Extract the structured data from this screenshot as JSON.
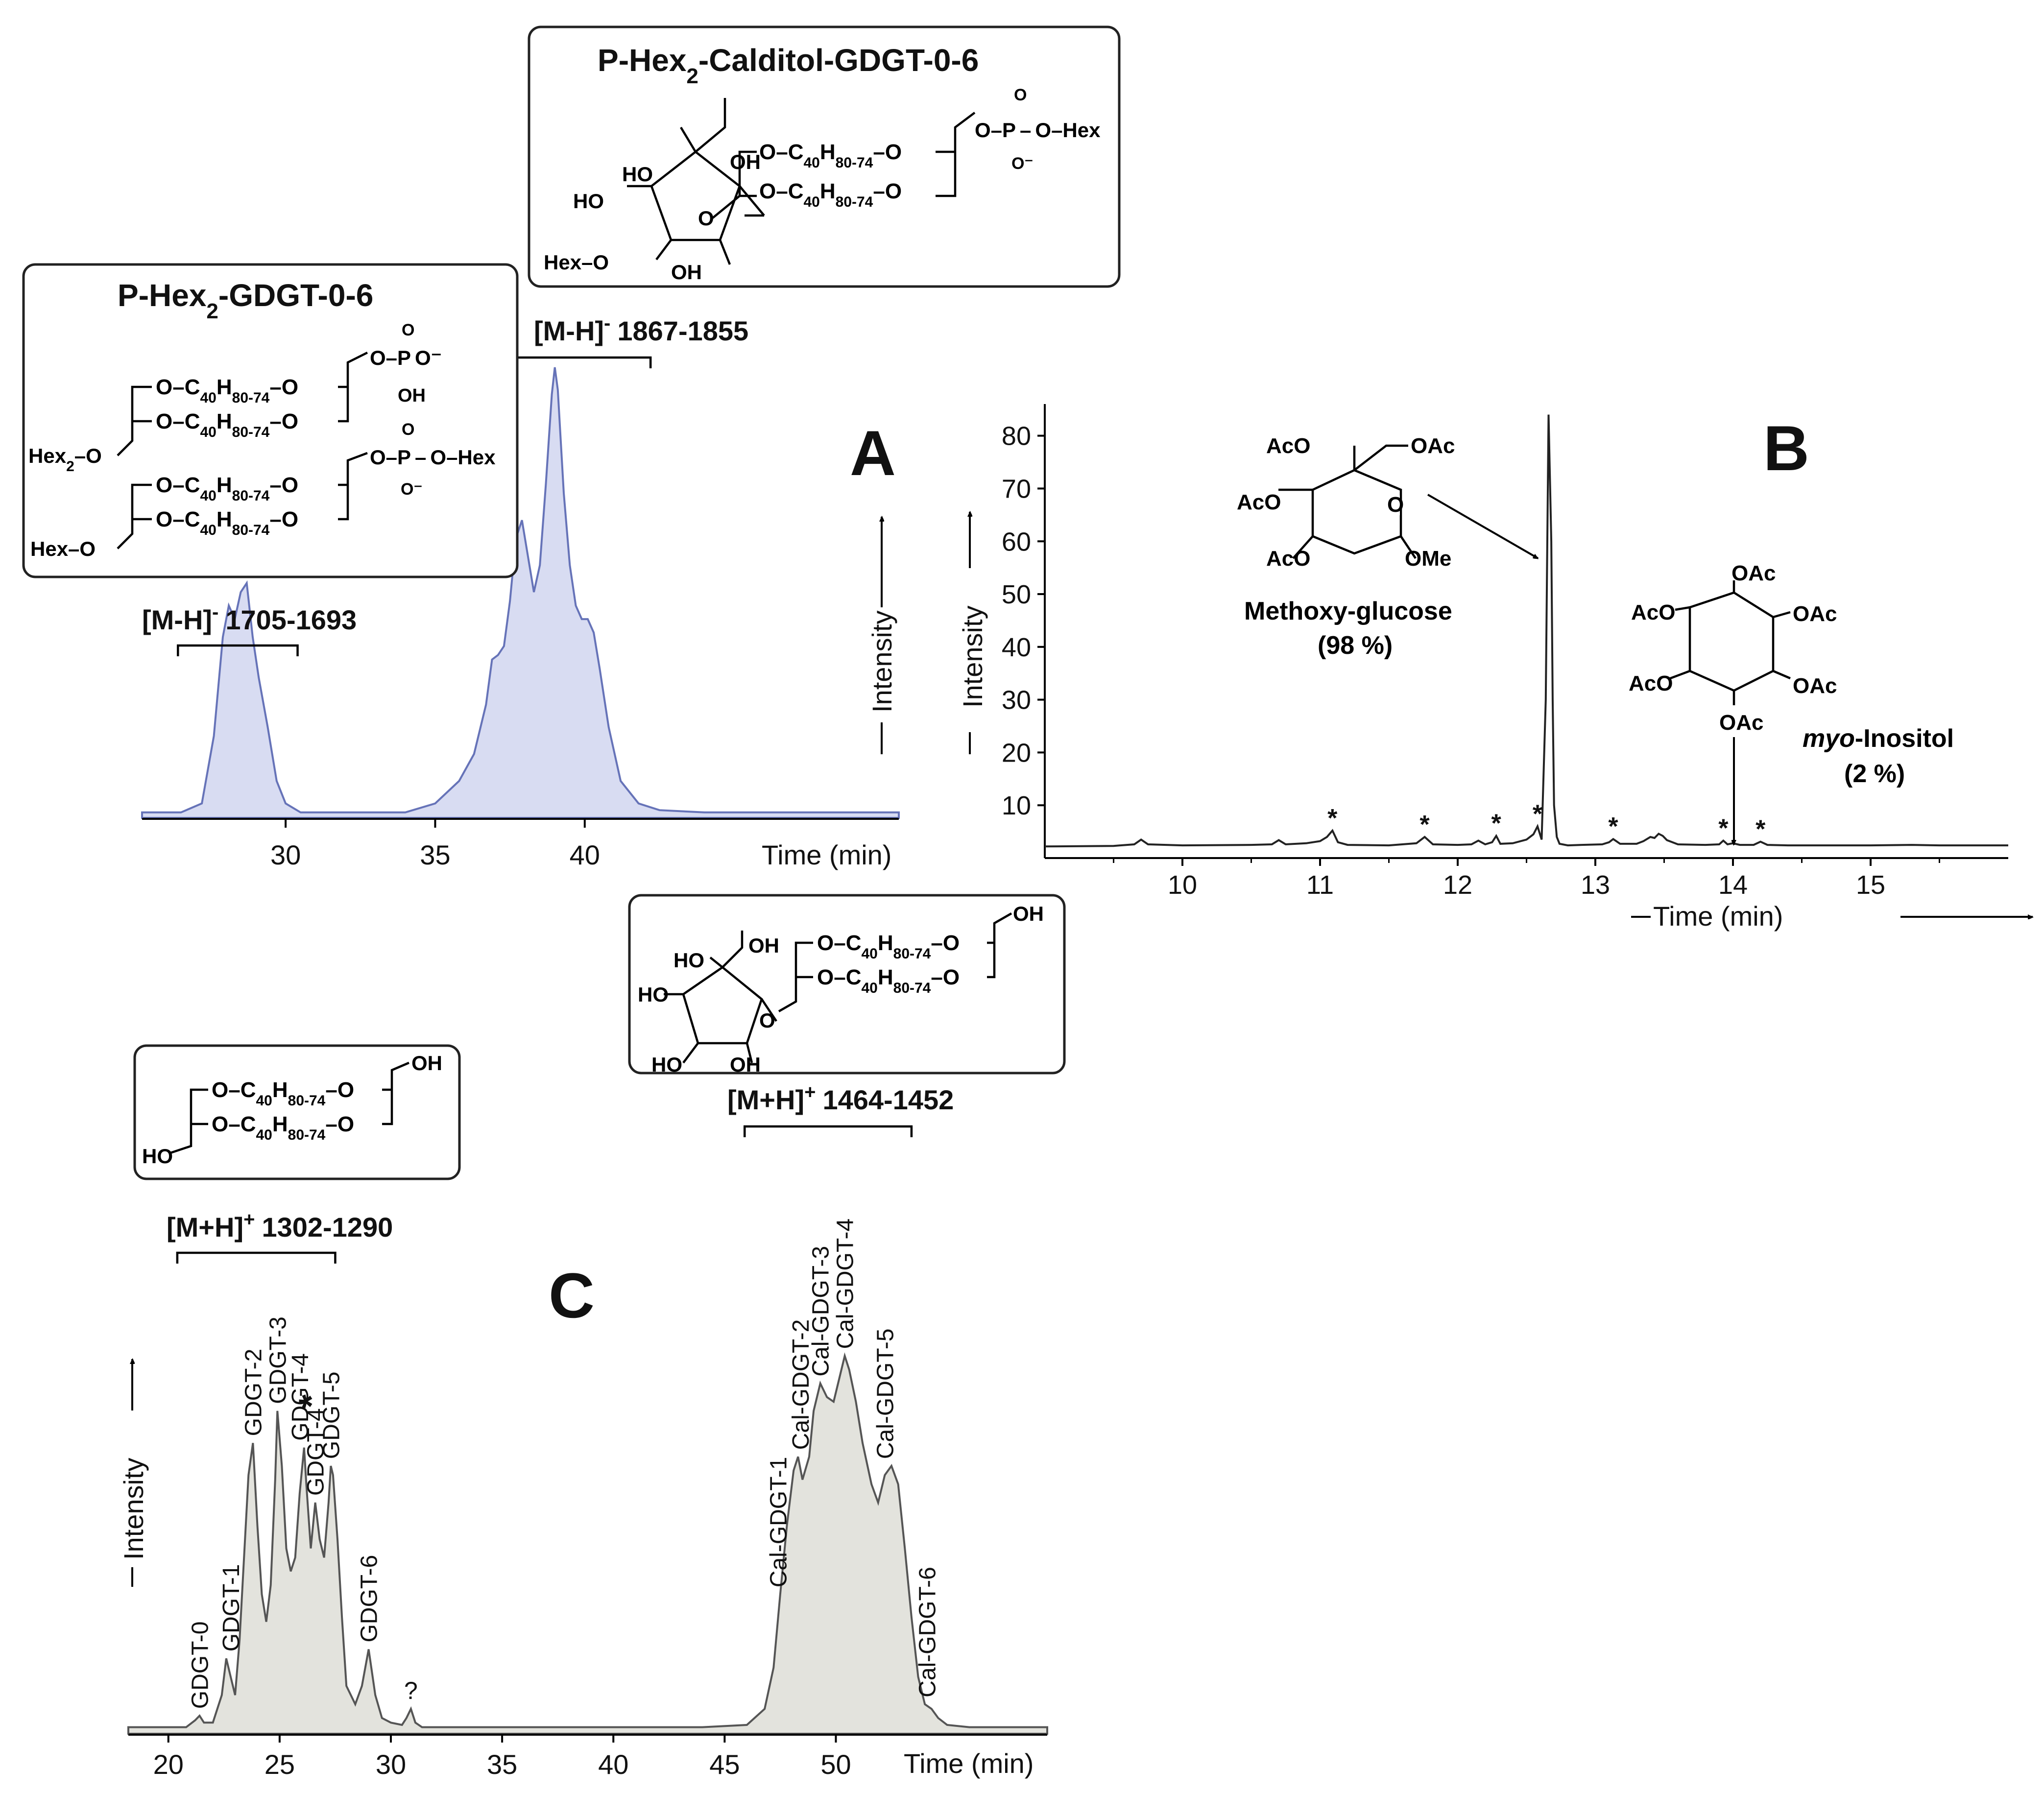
{
  "colors": {
    "panel_a_fill": "#d8dcf2",
    "panel_a_line": "#6673b8",
    "panel_c_fill": "#e3e3dd",
    "panel_c_line": "#555555",
    "trace": "#222222"
  },
  "structures": {
    "calditol_title_main": "P-Hex",
    "calditol_title_sub": "2",
    "calditol_title_rest": "-Calditol-GDGT-0-6",
    "gdgt_title_main": "P-Hex",
    "gdgt_title_sub": "2",
    "gdgt_title_rest": "-GDGT-0-6",
    "chain_prefix": "O–C",
    "chain_sub1": "40",
    "chain_mid": "H",
    "chain_sub2": "80-74",
    "chain_suffix": "–O",
    "OH": "OH",
    "HO": "HO",
    "O": "O",
    "P": "P",
    "Hex": "Hex",
    "Hex_O": "Hex–O",
    "O_Hex": "O–Hex",
    "O_P": "O–P",
    "O_minus": "O⁻",
    "Hex2_main": "Hex",
    "Hex2_sub": "2",
    "Hex2_rest": "–O",
    "AcO": "AcO",
    "OAc": "OAc",
    "OMe": "OMe"
  },
  "chart_data": [
    {
      "panel": "A",
      "type": "area",
      "panel_label": "A",
      "xlabel": "Time (min)",
      "ylabel": "Intensity",
      "xlim": [
        25.2,
        50.5
      ],
      "ylim": [
        0,
        100
      ],
      "xticks": [
        30,
        35,
        40
      ],
      "annotations": [
        {
          "label": "[M-H]",
          "sup": "-",
          "range_text": "1705-1693",
          "x_range": [
            26.4,
            30.4
          ]
        },
        {
          "label": "[M-H]",
          "sup": "-",
          "range_text": "1867-1855",
          "x_range": [
            35.5,
            42.2
          ]
        }
      ],
      "series": [
        {
          "name": "chromatogram A",
          "x": [
            25.2,
            26.5,
            27.2,
            27.6,
            27.9,
            28.1,
            28.3,
            28.5,
            28.7,
            28.9,
            29.1,
            29.4,
            29.7,
            30.0,
            30.5,
            32.0,
            34.0,
            35.0,
            35.8,
            36.3,
            36.7,
            36.9,
            37.1,
            37.3,
            37.5,
            37.7,
            37.9,
            38.1,
            38.3,
            38.5,
            38.7,
            38.9,
            39.0,
            39.1,
            39.3,
            39.5,
            39.7,
            39.9,
            40.1,
            40.3,
            40.5,
            40.8,
            41.2,
            41.8,
            42.5,
            44.0,
            46.0,
            48.0,
            50.5
          ],
          "y": [
            1,
            1,
            3,
            18,
            40,
            47,
            44,
            50,
            52,
            40,
            31,
            20,
            8,
            3,
            1,
            1,
            1,
            3,
            8,
            14,
            25,
            35,
            36,
            38,
            48,
            62,
            66,
            58,
            50,
            56,
            74,
            94,
            100,
            95,
            72,
            56,
            47,
            44,
            44,
            41,
            33,
            20,
            8,
            3,
            1.5,
            1,
            1,
            1,
            1
          ]
        }
      ]
    },
    {
      "panel": "B",
      "type": "line",
      "panel_label": "B",
      "xlabel": "Time (min)",
      "ylabel": "Intensity",
      "xlim": [
        9.0,
        16.0
      ],
      "ylim": [
        0,
        86
      ],
      "xticks": [
        10,
        11,
        12,
        13,
        14,
        15
      ],
      "yticks": [
        10,
        20,
        30,
        40,
        50,
        60,
        70,
        80
      ],
      "marker_label": "*",
      "peak_markers_x": [
        11.09,
        11.76,
        12.28,
        12.58,
        13.13,
        13.93,
        14.2
      ],
      "compound_1": {
        "name": "Methoxy-glucose",
        "percent": "(98 %)"
      },
      "compound_2": {
        "name_italic": "myo",
        "name_rest": "-Inositol",
        "percent": "(2 %)"
      },
      "series": [
        {
          "name": "GC trace",
          "x": [
            9.0,
            9.5,
            9.65,
            9.7,
            9.75,
            10.0,
            10.5,
            10.65,
            10.7,
            10.75,
            10.9,
            11.0,
            11.05,
            11.09,
            11.13,
            11.2,
            11.5,
            11.7,
            11.76,
            11.82,
            12.0,
            12.1,
            12.15,
            12.2,
            12.25,
            12.28,
            12.31,
            12.4,
            12.5,
            12.55,
            12.58,
            12.61,
            12.64,
            12.66,
            12.68,
            12.69,
            12.7,
            12.72,
            12.74,
            12.8,
            12.9,
            13.05,
            13.1,
            13.13,
            13.18,
            13.3,
            13.35,
            13.4,
            13.43,
            13.46,
            13.49,
            13.52,
            13.6,
            13.8,
            13.9,
            13.93,
            13.96,
            14.0,
            14.05,
            14.15,
            14.2,
            14.25,
            14.4,
            15.0,
            15.3,
            15.5,
            16.0
          ],
          "y": [
            2.2,
            2.3,
            2.6,
            3.5,
            2.6,
            2.4,
            2.5,
            2.6,
            3.4,
            2.6,
            2.8,
            3.2,
            4.0,
            5.2,
            3.0,
            2.5,
            2.4,
            2.8,
            4.0,
            2.6,
            2.5,
            2.6,
            3.3,
            2.6,
            3.0,
            4.2,
            2.7,
            2.8,
            3.5,
            4.5,
            6.0,
            3.5,
            30,
            84,
            60,
            30,
            10,
            4,
            2.7,
            2.4,
            2.5,
            2.6,
            3.0,
            3.6,
            2.7,
            2.7,
            3.2,
            4.0,
            3.8,
            4.6,
            4.2,
            3.4,
            2.6,
            2.5,
            2.6,
            3.3,
            2.6,
            2.8,
            2.5,
            2.5,
            3.1,
            2.5,
            2.4,
            2.4,
            2.5,
            2.4,
            2.4
          ]
        }
      ]
    },
    {
      "panel": "C",
      "type": "area",
      "panel_label": "C",
      "xlabel": "Time (min)",
      "ylabel": "Intensity",
      "xlim": [
        18.2,
        59.5
      ],
      "ylim": [
        0,
        100
      ],
      "xticks": [
        20,
        25,
        30,
        35,
        40,
        45,
        50
      ],
      "annotations": [
        {
          "label": "[M+H]",
          "sup": "+",
          "range_text": "1302-1290",
          "x_range": [
            20.4,
            27.5
          ]
        },
        {
          "label": "[M+H]",
          "sup": "+",
          "range_text": "1464-1452",
          "x_range": [
            45.9,
            53.4
          ]
        }
      ],
      "peak_labels": [
        {
          "text": "GDGT-0",
          "x": 21.4
        },
        {
          "text": "GDGT-1",
          "x": 22.8
        },
        {
          "text": "GDGT-2",
          "x": 23.8
        },
        {
          "text": "GDGT-3",
          "x": 24.9
        },
        {
          "text": "GDGT-4",
          "x": 25.9
        },
        {
          "text": "GDGT-4",
          "star": "*",
          "x": 26.6
        },
        {
          "text": "GDGT-5",
          "x": 27.3
        },
        {
          "text": "GDGT-6",
          "x": 29.0
        },
        {
          "text": "?",
          "x": 30.9
        },
        {
          "text": "Cal-GDGT-1",
          "x": 47.4
        },
        {
          "text": "Cal-GDGT-2",
          "x": 48.4
        },
        {
          "text": "Cal-GDGT-3",
          "x": 49.3
        },
        {
          "text": "Cal-GDGT-4",
          "x": 50.4
        },
        {
          "text": "Cal-GDGT-5",
          "x": 52.2
        },
        {
          "text": "Cal-GDGT-6",
          "x": 54.1
        }
      ],
      "series": [
        {
          "name": "chromatogram C",
          "x": [
            18.2,
            20.8,
            21.2,
            21.4,
            21.6,
            22.0,
            22.4,
            22.6,
            22.8,
            23.0,
            23.2,
            23.4,
            23.6,
            23.8,
            24.0,
            24.2,
            24.4,
            24.6,
            24.8,
            24.9,
            25.1,
            25.3,
            25.5,
            25.7,
            25.9,
            26.1,
            26.2,
            26.4,
            26.6,
            26.8,
            27.0,
            27.2,
            27.3,
            27.4,
            27.6,
            27.8,
            28.0,
            28.4,
            28.7,
            29.0,
            29.3,
            29.6,
            30.0,
            30.5,
            30.7,
            30.9,
            31.1,
            31.4,
            35.0,
            40.0,
            44.0,
            46.0,
            46.8,
            47.2,
            47.5,
            47.8,
            48.1,
            48.3,
            48.5,
            48.8,
            49.0,
            49.3,
            49.6,
            49.9,
            50.1,
            50.4,
            50.6,
            50.9,
            51.2,
            51.6,
            51.9,
            52.2,
            52.5,
            52.8,
            53.1,
            53.4,
            53.7,
            54.0,
            54.3,
            54.6,
            55.0,
            56.0,
            59.5
          ],
          "y": [
            1,
            1,
            2.5,
            3.5,
            2,
            2,
            8,
            16,
            12,
            8,
            20,
            38,
            56,
            63,
            45,
            30,
            24,
            32,
            55,
            70,
            58,
            40,
            35,
            38,
            52,
            62,
            54,
            40,
            50,
            42,
            38,
            50,
            58,
            56,
            42,
            25,
            10,
            6,
            10,
            18,
            8,
            3,
            2,
            1.5,
            3,
            5,
            2,
            1,
            1,
            1,
            1,
            1.5,
            5,
            14,
            30,
            45,
            57,
            60,
            55,
            60,
            70,
            76,
            73,
            72,
            76,
            82,
            79,
            72,
            63,
            54,
            50,
            56,
            58,
            54,
            40,
            25,
            12,
            6,
            5,
            3,
            1.5,
            1,
            1
          ]
        }
      ]
    }
  ]
}
